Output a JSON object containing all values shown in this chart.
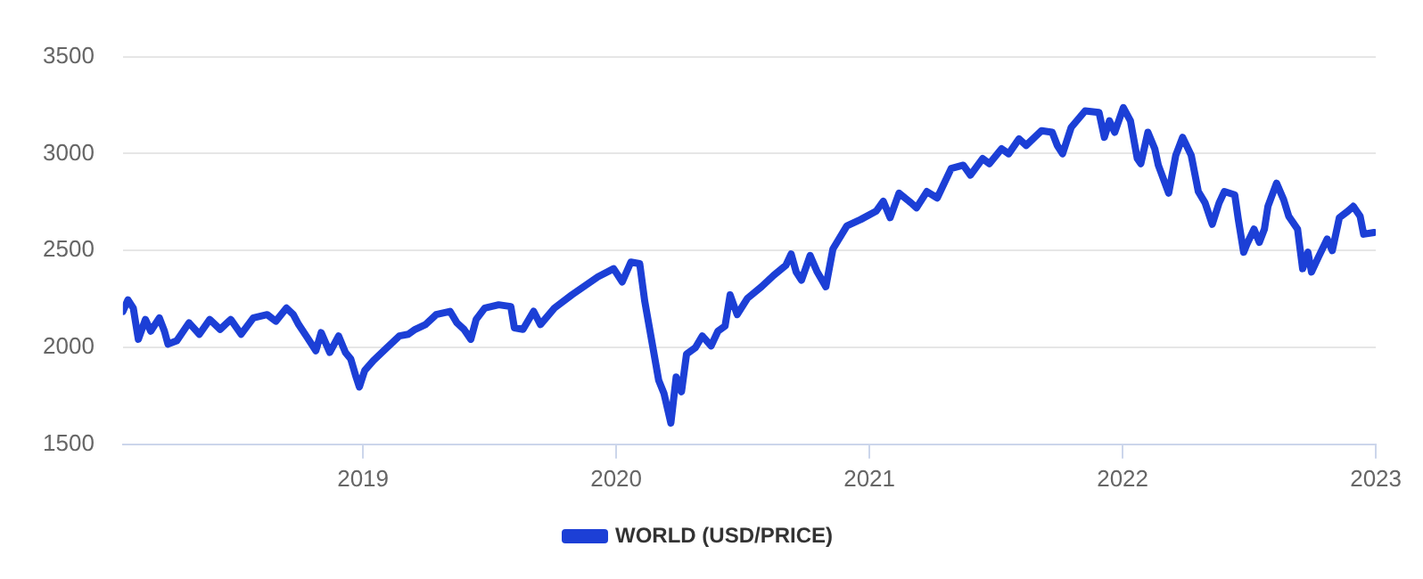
{
  "chart_data": {
    "type": "line",
    "xlim": [
      2018.052,
      2023
    ],
    "xticks": [
      2019,
      2020,
      2021,
      2022,
      2023
    ],
    "ylim": [
      1500,
      3500
    ],
    "yticks": [
      1500,
      2000,
      2500,
      3000,
      3500
    ],
    "grid": "y",
    "legend": "bottom",
    "marker": "none",
    "line_style": "solid",
    "series": [
      {
        "name": "WORLD (USD/PRICE)",
        "color": "#1c3fd6",
        "x": [
          2018.052,
          2018.072,
          2018.093,
          2018.113,
          2018.141,
          2018.162,
          2018.196,
          2018.216,
          2018.23,
          2018.265,
          2018.313,
          2018.354,
          2018.395,
          2018.436,
          2018.478,
          2018.519,
          2018.567,
          2018.622,
          2018.656,
          2018.698,
          2018.725,
          2018.746,
          2018.78,
          2018.814,
          2018.835,
          2018.869,
          2018.904,
          2018.931,
          2018.952,
          2018.973,
          2018.986,
          2019.007,
          2019.041,
          2019.089,
          2019.144,
          2019.179,
          2019.206,
          2019.247,
          2019.289,
          2019.344,
          2019.371,
          2019.399,
          2019.426,
          2019.447,
          2019.481,
          2019.536,
          2019.584,
          2019.598,
          2019.632,
          2019.674,
          2019.701,
          2019.756,
          2019.825,
          2019.928,
          2019.99,
          2020.024,
          2020.058,
          2020.093,
          2020.113,
          2020.168,
          2020.189,
          2020.216,
          2020.237,
          2020.258,
          2020.278,
          2020.313,
          2020.34,
          2020.375,
          2020.402,
          2020.43,
          2020.45,
          2020.478,
          2020.519,
          2020.574,
          2020.622,
          2020.67,
          2020.691,
          2020.711,
          2020.732,
          2020.766,
          2020.794,
          2020.828,
          2020.856,
          2020.911,
          2020.966,
          2021.027,
          2021.055,
          2021.082,
          2021.117,
          2021.165,
          2021.186,
          2021.227,
          2021.268,
          2021.323,
          2021.371,
          2021.399,
          2021.447,
          2021.474,
          2021.522,
          2021.55,
          2021.591,
          2021.619,
          2021.68,
          2021.722,
          2021.742,
          2021.763,
          2021.797,
          2021.852,
          2021.907,
          2021.928,
          2021.948,
          2021.969,
          2022.003,
          2022.031,
          2022.058,
          2022.072,
          2022.1,
          2022.127,
          2022.141,
          2022.182,
          2022.21,
          2022.237,
          2022.271,
          2022.299,
          2022.326,
          2022.354,
          2022.381,
          2022.402,
          2022.443,
          2022.457,
          2022.478,
          2022.491,
          2022.519,
          2022.54,
          2022.56,
          2022.574,
          2022.608,
          2022.636,
          2022.656,
          2022.691,
          2022.711,
          2022.732,
          2022.746,
          2022.773,
          2022.808,
          2022.828,
          2022.856,
          2022.89,
          2022.911,
          2022.938,
          2022.952,
          2022.993
        ],
        "values": [
          2186,
          2245,
          2203,
          2042,
          2144,
          2084,
          2152,
          2084,
          2017,
          2034,
          2127,
          2068,
          2144,
          2093,
          2144,
          2068,
          2152,
          2169,
          2135,
          2203,
          2169,
          2118,
          2051,
          1983,
          2076,
          1974,
          2059,
          1974,
          1940,
          1847,
          1796,
          1881,
          1932,
          1991,
          2059,
          2068,
          2093,
          2118,
          2169,
          2186,
          2127,
          2093,
          2042,
          2144,
          2203,
          2220,
          2211,
          2101,
          2093,
          2186,
          2118,
          2203,
          2271,
          2364,
          2406,
          2338,
          2440,
          2432,
          2237,
          1830,
          1762,
          1610,
          1847,
          1771,
          1966,
          1999,
          2059,
          2008,
          2084,
          2110,
          2271,
          2169,
          2254,
          2313,
          2372,
          2423,
          2482,
          2389,
          2347,
          2474,
          2389,
          2313,
          2508,
          2627,
          2660,
          2703,
          2754,
          2669,
          2796,
          2745,
          2720,
          2804,
          2771,
          2923,
          2940,
          2889,
          2974,
          2948,
          3025,
          2999,
          3076,
          3042,
          3118,
          3110,
          3042,
          2999,
          3135,
          3220,
          3212,
          3084,
          3169,
          3110,
          3237,
          3169,
          2974,
          2948,
          3110,
          3025,
          2940,
          2796,
          2991,
          3084,
          2991,
          2804,
          2745,
          2635,
          2745,
          2804,
          2787,
          2660,
          2491,
          2533,
          2610,
          2542,
          2610,
          2728,
          2847,
          2762,
          2677,
          2610,
          2406,
          2491,
          2389,
          2465,
          2559,
          2499,
          2669,
          2703,
          2728,
          2677,
          2584,
          2593
        ]
      }
    ]
  }
}
